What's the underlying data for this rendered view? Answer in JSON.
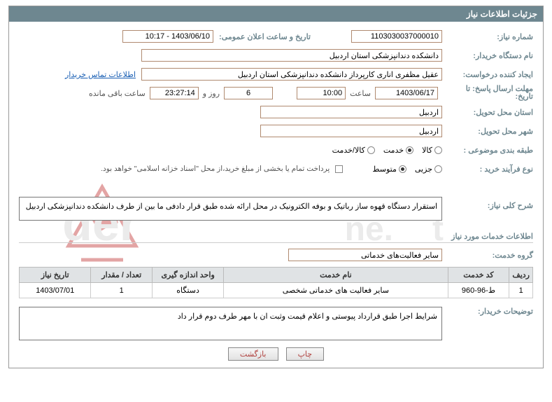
{
  "header": {
    "title": "جزئیات اطلاعات نیاز"
  },
  "labels": {
    "need_number": "شماره نیاز:",
    "announce_datetime": "تاریخ و ساعت اعلان عمومی:",
    "buyer_org": "نام دستگاه خریدار:",
    "request_creator": "ایجاد کننده درخواست:",
    "deadline": "مهلت ارسال پاسخ: تا تاریخ:",
    "hour_word": "ساعت",
    "days_word": "روز و",
    "remain_word": "ساعت باقی مانده",
    "delivery_province": "استان محل تحویل:",
    "delivery_city": "شهر محل تحویل:",
    "subject_class": "طبقه بندی موضوعی :",
    "process_type": "نوع فرآیند خرید :",
    "contact_info": "اطلاعات تماس خریدار",
    "general_desc": "شرح کلی نیاز:",
    "services_info": "اطلاعات خدمات مورد نیاز",
    "service_group": "گروه خدمت:",
    "buyer_notes": "توضیحات خریدار:",
    "payment_note": "پرداخت تمام یا بخشی از مبلغ خرید،از محل \"اسناد خزانه اسلامی\" خواهد بود."
  },
  "values": {
    "need_number": "1103030037000010",
    "announce_datetime": "1403/06/10 - 10:17",
    "buyer_org": "دانشکده دندانپزشکی استان اردبیل",
    "request_creator": "عقیل مظفری اناری کارپرداز دانشکده دندانپزشکی استان اردبیل",
    "deadline_date": "1403/06/17",
    "deadline_hour": "10:00",
    "remain_days": "6",
    "remain_time": "23:27:14",
    "delivery_province": "اردبیل",
    "delivery_city": "اردبیل",
    "general_desc": "استقرار دستگاه قهوه ساز رباتیک و بوفه الکترونیک در محل ارائه شده طبق قرار دادفی ما بین از طرف دانشکده دندانپزشکی اردبیل",
    "service_group": "سایر فعالیت‌های خدماتی",
    "buyer_notes": "شرایط اجرا طبق قرارداد پیوستی و اعلام قیمت وثبت ان با مهر طرف دوم قرار داد"
  },
  "radios": {
    "goods": "کالا",
    "service": "خدمت",
    "goods_service": "کالا/خدمت",
    "minor": "جزیی",
    "medium": "متوسط"
  },
  "table": {
    "headers": [
      "ردیف",
      "کد خدمت",
      "نام خدمت",
      "واحد اندازه گیری",
      "تعداد / مقدار",
      "تاریخ نیاز"
    ],
    "rows": [
      [
        "1",
        "ط-96-960",
        "سایر فعالیت های خدماتی شخصی",
        "دستگاه",
        "1",
        "1403/07/01"
      ]
    ]
  },
  "buttons": {
    "print": "چاپ",
    "back": "بازگشت"
  },
  "watermark": {
    "text": "AriaTender.net",
    "color_shape": "#c94b4b",
    "color_text": "#d8d8d8"
  }
}
